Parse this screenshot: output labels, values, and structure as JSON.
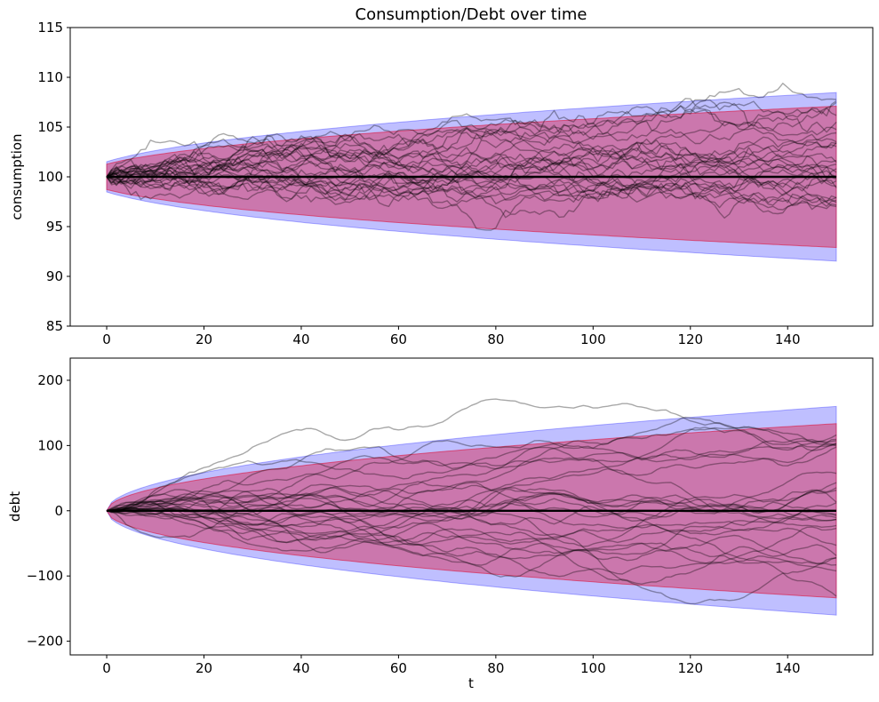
{
  "figure": {
    "title": "Consumption/Debt over time",
    "background_color": "#ffffff",
    "axis_color": "#000000",
    "text_color": "#000000"
  },
  "colors": {
    "outer_band": "#0000ff",
    "outer_band_alpha": 0.25,
    "outer_band_edge_alpha": 0.3,
    "inner_band": "#dc143c",
    "inner_band_alpha": 0.42,
    "inner_band_edge_alpha": 0.6,
    "sample_path": "#000000",
    "sample_path_alpha": 0.34,
    "mean_line": "#000000"
  },
  "chart_data": [
    {
      "type": "line",
      "name": "consumption-panel",
      "title": "Consumption/Debt over time",
      "xlabel": "",
      "ylabel": "consumption",
      "xlim": [
        -7.5,
        157.5
      ],
      "ylim": [
        85,
        115
      ],
      "t_max": 150,
      "xticks": [
        0,
        20,
        40,
        60,
        80,
        100,
        120,
        140
      ],
      "xtick_labels": [
        "0",
        "20",
        "40",
        "60",
        "80",
        "100",
        "120",
        "140"
      ],
      "yticks": [
        85,
        90,
        95,
        100,
        105,
        110,
        115
      ],
      "ytick_labels": [
        "85",
        "90",
        "95",
        "100",
        "105",
        "110",
        "115"
      ],
      "grid": false,
      "legend": "none",
      "mean_value": 100,
      "mean_line_range": [
        0,
        150
      ],
      "bands": [
        {
          "name": "outer-95pct-band",
          "halfwidth_scale": 0.68,
          "halfwidth_t_offset": 5,
          "halfwidth_at_t0": 1.52,
          "halfwidth_at_t150": 8.5
        },
        {
          "name": "inner-90pct-band",
          "halfwidth_scale": 0.57,
          "halfwidth_t_offset": 5,
          "halfwidth_at_t0": 1.27,
          "halfwidth_at_t150": 7.1
        }
      ],
      "simulation": {
        "n_paths": 28,
        "start_value": 100,
        "step_sigma": 0.34,
        "increment_rho": 0.0,
        "seed": 1337
      }
    },
    {
      "type": "line",
      "name": "debt-panel",
      "title": "",
      "xlabel": "t",
      "ylabel": "debt",
      "xlim": [
        -7.5,
        157.5
      ],
      "ylim": [
        -221,
        234
      ],
      "t_max": 150,
      "xticks": [
        0,
        20,
        40,
        60,
        80,
        100,
        120,
        140
      ],
      "xtick_labels": [
        "0",
        "20",
        "40",
        "60",
        "80",
        "100",
        "120",
        "140"
      ],
      "yticks": [
        -200,
        -100,
        0,
        100,
        200
      ],
      "ytick_labels": [
        "−200",
        "−100",
        "0",
        "100",
        "200"
      ],
      "grid": false,
      "legend": "none",
      "mean_value": 0,
      "mean_line_range": [
        0,
        150
      ],
      "bands": [
        {
          "name": "outer-95pct-band",
          "halfwidth_scale": 13.06,
          "halfwidth_t_offset": 0,
          "halfwidth_at_t0": 0,
          "halfwidth_at_t150": 160
        },
        {
          "name": "inner-90pct-band",
          "halfwidth_scale": 10.9,
          "halfwidth_t_offset": 0,
          "halfwidth_at_t0": 0,
          "halfwidth_at_t150": 133.5
        }
      ],
      "simulation": {
        "n_paths": 28,
        "start_value": 0,
        "step_sigma": 1.63,
        "increment_rho": 0.75,
        "seed": 4242
      }
    }
  ]
}
